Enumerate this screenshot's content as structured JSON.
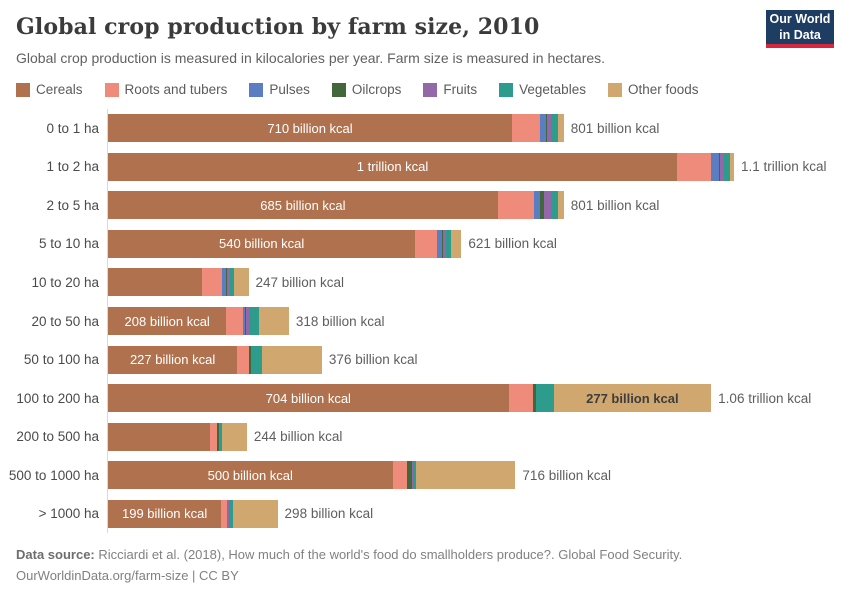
{
  "header": {
    "title": "Global crop production by farm size, 2010",
    "subtitle": "Global crop production is measured in kilocalories per year. Farm size is measured in hectares."
  },
  "logo": {
    "line1": "Our World",
    "line2": "in Data",
    "bg_color": "#1d3d63",
    "accent_color": "#d7263f"
  },
  "chart_data": {
    "type": "bar",
    "orientation": "horizontal",
    "stacked": true,
    "unit": "billion kcal per year",
    "xlim": [
      0,
      1100
    ],
    "grid": false,
    "legend_position": "top",
    "categories": [
      "0 to 1 ha",
      "1 to 2 ha",
      "2 to 5 ha",
      "5 to 10 ha",
      "10 to 20 ha",
      "20 to 50 ha",
      "50 to 100 ha",
      "100 to 200 ha",
      "200 to 500 ha",
      "500 to 1000 ha",
      "> 1000 ha"
    ],
    "series": [
      {
        "name": "Cereals",
        "color": "#B0724E",
        "values": [
          710,
          1000,
          685,
          540,
          165,
          208,
          227,
          704,
          180,
          500,
          199
        ]
      },
      {
        "name": "Roots and tubers",
        "color": "#EE8B7A",
        "values": [
          50,
          59,
          63,
          39,
          35,
          30,
          20,
          42,
          11,
          25,
          10
        ]
      },
      {
        "name": "Pulses",
        "color": "#5B7EC2",
        "values": [
          10,
          15,
          11,
          8,
          8,
          3,
          1,
          1,
          1,
          1,
          1
        ]
      },
      {
        "name": "Oilcrops",
        "color": "#41673B",
        "values": [
          1,
          1,
          8,
          1,
          1,
          2,
          3,
          5,
          3,
          9,
          1
        ]
      },
      {
        "name": "Fruits",
        "color": "#9368A8",
        "values": [
          7,
          8,
          11,
          6,
          6,
          4,
          1,
          1,
          1,
          1,
          1
        ]
      },
      {
        "name": "Vegetables",
        "color": "#2E9C8D",
        "values": [
          13,
          10,
          12,
          8,
          7,
          19,
          18,
          30,
          5,
          5,
          8
        ]
      },
      {
        "name": "Other foods",
        "color": "#CFA76F",
        "values": [
          10,
          7,
          11,
          19,
          25,
          52,
          106,
          277,
          43,
          175,
          78
        ]
      }
    ],
    "cereal_value_labels": [
      "710 billion kcal",
      "1 trillion kcal",
      "685 billion kcal",
      "540 billion kcal",
      null,
      "208 billion kcal",
      "227 billion kcal",
      "704 billion kcal",
      null,
      "500 billion kcal",
      "199 billion kcal"
    ],
    "other_food_value_labels": [
      null,
      null,
      null,
      null,
      null,
      null,
      null,
      "277 billion kcal",
      null,
      null,
      null
    ],
    "total_labels": [
      "801 billion kcal",
      "1.1 trillion kcal",
      "801 billion kcal",
      "621 billion kcal",
      "247 billion kcal",
      "318 billion kcal",
      "376 billion kcal",
      "1.06 trillion kcal",
      "244 billion kcal",
      "716 billion kcal",
      "298 billion kcal"
    ]
  },
  "footer": {
    "datasource_prefix": "Data source:",
    "datasource_text": " Ricciardi et al. (2018), How much of the world's food do smallholders produce?. Global Food Security.",
    "link_line": "OurWorldinData.org/farm-size | CC BY"
  }
}
